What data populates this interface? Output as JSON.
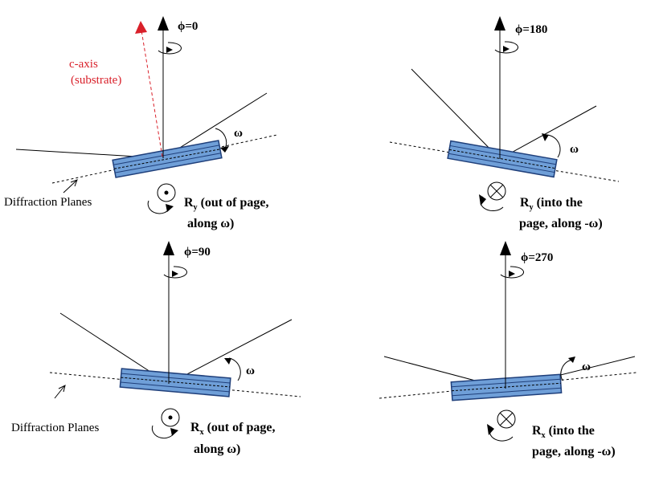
{
  "colors": {
    "ink": "#000000",
    "crystal_fill": "#6f9fd8",
    "crystal_edge": "#1f3f7a",
    "c_axis": "#d9202a"
  },
  "panels": [
    {
      "id": "phi0",
      "phi_label": "ϕ=0",
      "omega_label": "ω",
      "rotation_symbol": "⊙",
      "rotation_axis_letter": "R",
      "rotation_axis_sub": "y",
      "rotation_line1": " (out of page,",
      "rotation_line2": "along ω)",
      "planes_label": "Diffraction Planes",
      "c_axis_line1": "c-axis",
      "c_axis_line2": "(substrate)"
    },
    {
      "id": "phi180",
      "phi_label": "ϕ=180",
      "omega_label": "ω",
      "rotation_symbol": "⊗",
      "rotation_axis_letter": "R",
      "rotation_axis_sub": "y",
      "rotation_line1": " (into the",
      "rotation_line2": "page, along -ω)"
    },
    {
      "id": "phi90",
      "phi_label": "ϕ=90",
      "omega_label": "ω",
      "rotation_symbol": "⊙",
      "rotation_axis_letter": "R",
      "rotation_axis_sub": "x",
      "rotation_line1": " (out of page,",
      "rotation_line2": "along ω)",
      "planes_label": "Diffraction Planes"
    },
    {
      "id": "phi270",
      "phi_label": "ϕ=270",
      "omega_label": "ω",
      "rotation_symbol": "⊗",
      "rotation_axis_letter": "R",
      "rotation_axis_sub": "x",
      "rotation_line1": " (into the",
      "rotation_line2": "page, along -ω)"
    }
  ]
}
